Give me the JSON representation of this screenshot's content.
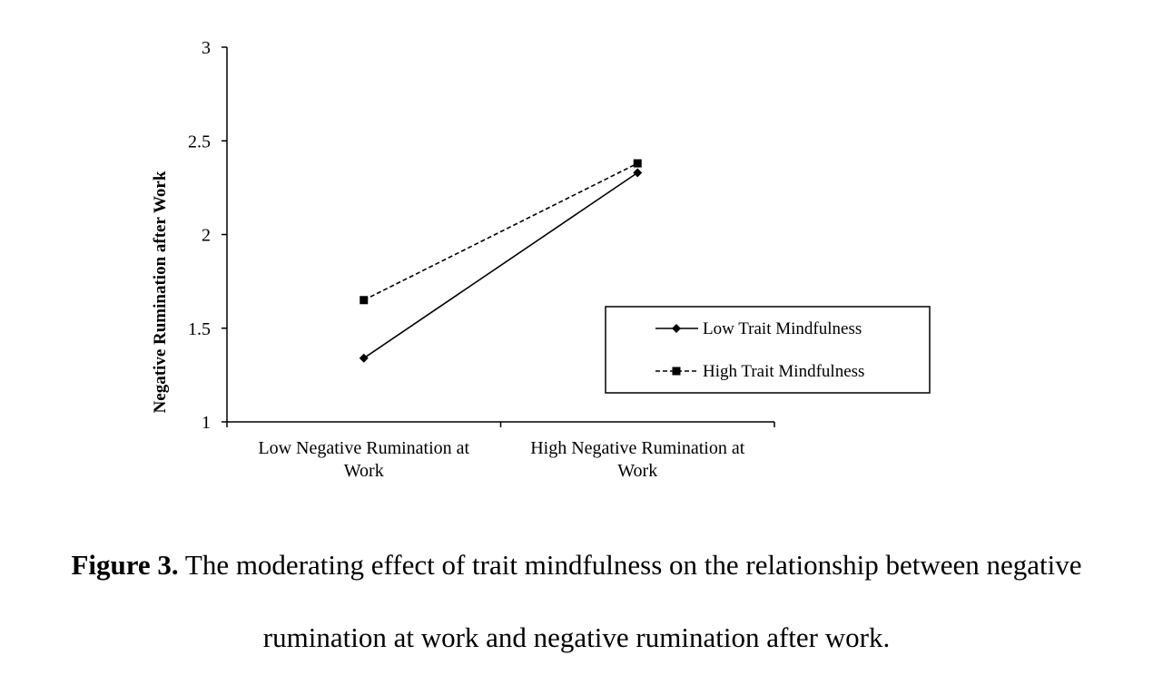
{
  "chart_data": {
    "type": "line",
    "categories": [
      [
        "Low Negative Rumination at",
        "Work"
      ],
      [
        "High Negative Rumination at",
        "Work"
      ]
    ],
    "ylabel": "Negative Rumination after Work",
    "xlabel": "",
    "ylim": [
      1,
      3
    ],
    "yticks": [
      "1",
      "1.5",
      "2",
      "2.5",
      "3"
    ],
    "grid": false,
    "legend_position": "right, inside plot",
    "series": [
      {
        "name": "Low Trait Mindfulness",
        "values": [
          1.34,
          2.33
        ],
        "line_style": "solid",
        "marker": "diamond",
        "color": "#000000"
      },
      {
        "name": "High Trait Mindfulness",
        "values": [
          1.65,
          2.38
        ],
        "line_style": "dashed",
        "marker": "square",
        "color": "#000000"
      }
    ]
  },
  "caption": {
    "label": "Figure 3.",
    "text_line1": " The moderating effect of trait mindfulness on the relationship between negative",
    "text_line2": "rumination at work and negative rumination after work."
  }
}
